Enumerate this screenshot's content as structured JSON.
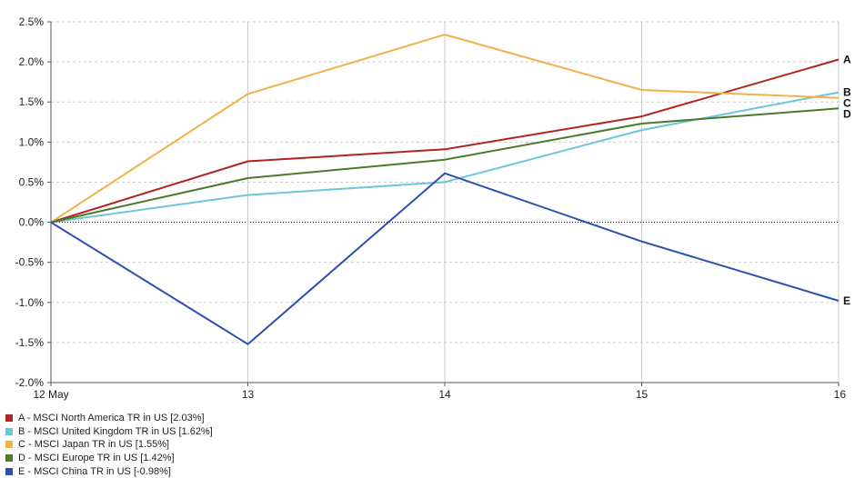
{
  "chart_data": {
    "type": "line",
    "x": [
      "12 May",
      "13",
      "14",
      "15",
      "16"
    ],
    "ylim": [
      -2.0,
      2.5
    ],
    "yticks": [
      "2.5%",
      "2.0%",
      "1.5%",
      "1.0%",
      "0.5%",
      "0.0%",
      "-0.5%",
      "-1.0%",
      "-1.5%",
      "-2.0%"
    ],
    "grid": true,
    "legend_position": "bottom-left",
    "series": [
      {
        "id": "A",
        "name": "A - MSCI North America TR in US [2.03%]",
        "color": "#b22222",
        "values": [
          0.0,
          0.76,
          0.91,
          1.32,
          2.03
        ]
      },
      {
        "id": "B",
        "name": "B - MSCI United Kingdom TR in US [1.62%]",
        "color": "#6cc5d9",
        "values": [
          0.0,
          0.34,
          0.5,
          1.15,
          1.62
        ]
      },
      {
        "id": "C",
        "name": "C - MSCI Japan TR in US [1.55%]",
        "color": "#f0b14a",
        "values": [
          0.0,
          1.6,
          2.34,
          1.65,
          1.55
        ]
      },
      {
        "id": "D",
        "name": "D - MSCI Europe TR in US [1.42%]",
        "color": "#4a7a2a",
        "values": [
          0.0,
          0.55,
          0.78,
          1.23,
          1.42
        ]
      },
      {
        "id": "E",
        "name": "E - MSCI China TR in US [-0.98%]",
        "color": "#2e4fb0",
        "values": [
          0.0,
          -1.52,
          0.61,
          -0.24,
          -0.98
        ]
      }
    ]
  }
}
